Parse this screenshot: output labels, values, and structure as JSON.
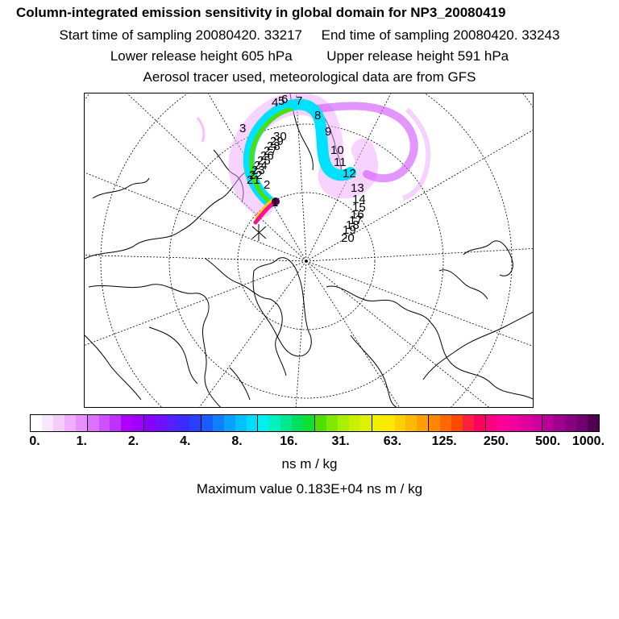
{
  "header": {
    "title": "Column-integrated emission sensitivity in global domain for NP3_20080419",
    "start_label": "Start time of sampling 20080420. 33217",
    "end_label": "End time of sampling 20080420. 33243",
    "lower_label": "Lower release height  605 hPa",
    "upper_label": "Upper release height  591 hPa",
    "tracer_label": "Aerosol tracer used, meteorological data are from GFS"
  },
  "map": {
    "day_labels": [
      "1",
      "2",
      "3",
      "4",
      "5",
      "6",
      "7",
      "8",
      "9",
      "10",
      "11",
      "12",
      "13",
      "14",
      "15",
      "16",
      "17",
      "18",
      "19",
      "20",
      "21",
      "22",
      "23",
      "24",
      "25",
      "26",
      "27",
      "28",
      "29",
      "30"
    ],
    "colors": {
      "coast": "#000000",
      "grid": "#000000",
      "plume_low": "#f0a8ff",
      "plume_mid": "#00e0ff",
      "plume_high": "#ff1090"
    }
  },
  "colorbar": {
    "colors": [
      "#ffffff",
      "#fbe6ff",
      "#f6ccff",
      "#f0b0ff",
      "#e890ff",
      "#dd70ff",
      "#d050ff",
      "#c030ff",
      "#b000ff",
      "#a000ff",
      "#8a00ff",
      "#7010ff",
      "#5520ff",
      "#3d2aff",
      "#2a40ff",
      "#1a5cff",
      "#1080ff",
      "#0aa0ff",
      "#04c0ff",
      "#00dcff",
      "#00f0f0",
      "#00f0c0",
      "#00e890",
      "#00e060",
      "#10e030",
      "#50e000",
      "#80e800",
      "#a8f000",
      "#c8f000",
      "#e0f000",
      "#f0f000",
      "#ffe800",
      "#ffd000",
      "#ffb800",
      "#ffa000",
      "#ff8800",
      "#ff6800",
      "#ff4800",
      "#ff2040",
      "#ff0060",
      "#ff0080",
      "#ff0098",
      "#f000a0",
      "#e000a0",
      "#d000a0",
      "#b80098",
      "#a00090",
      "#880080",
      "#700070",
      "#500050"
    ],
    "tick_labels": [
      "0.",
      "1.",
      "2.",
      "4.",
      "8.",
      "16.",
      "31.",
      "63.",
      "125.",
      "250.",
      "500.",
      "1000."
    ],
    "unit": "ns m / kg"
  },
  "footer": {
    "max_label": "Maximum value  0.183E+04 ns m / kg"
  }
}
